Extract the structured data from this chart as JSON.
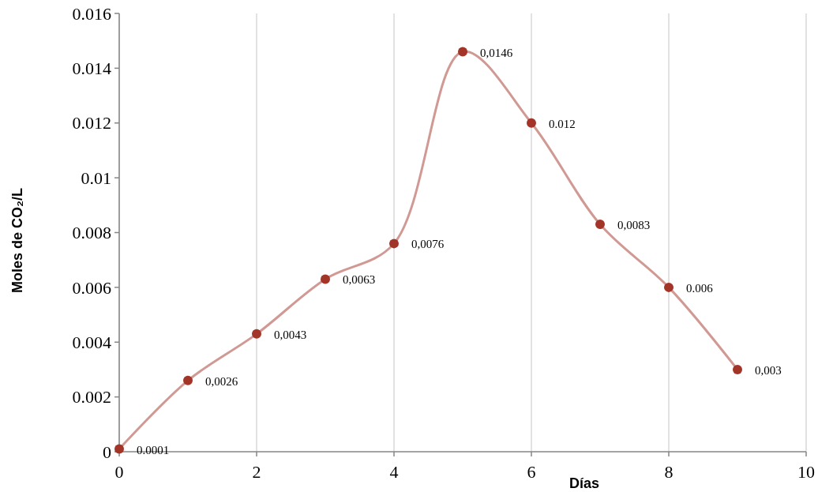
{
  "chart_data": {
    "type": "line",
    "xlabel": "Días",
    "ylabel": "Moles de CO₂/L",
    "x": [
      0,
      1,
      2,
      3,
      4,
      5,
      6,
      7,
      8,
      9
    ],
    "series": [
      {
        "color": "#a33428",
        "values": [
          0.0001,
          0.0026,
          0.0043,
          0.0063,
          0.0076,
          0.0146,
          0.012,
          0.0083,
          0.006,
          0.003
        ],
        "value_labels": [
          "0.0001",
          "0,0026",
          "0,0043",
          "0,0063",
          "0,0076",
          "0,0146",
          "0.012",
          "0,0083",
          "0.006",
          "0,003"
        ]
      }
    ],
    "xlim": [
      0,
      10
    ],
    "xticks": [
      0,
      2,
      4,
      6,
      8,
      10
    ],
    "ylim": [
      0,
      0.016
    ],
    "yticks": [
      0,
      0.002,
      0.004,
      0.006,
      0.008,
      0.01,
      0.012,
      0.014,
      0.016
    ],
    "grid": "x",
    "marker": "circle"
  }
}
